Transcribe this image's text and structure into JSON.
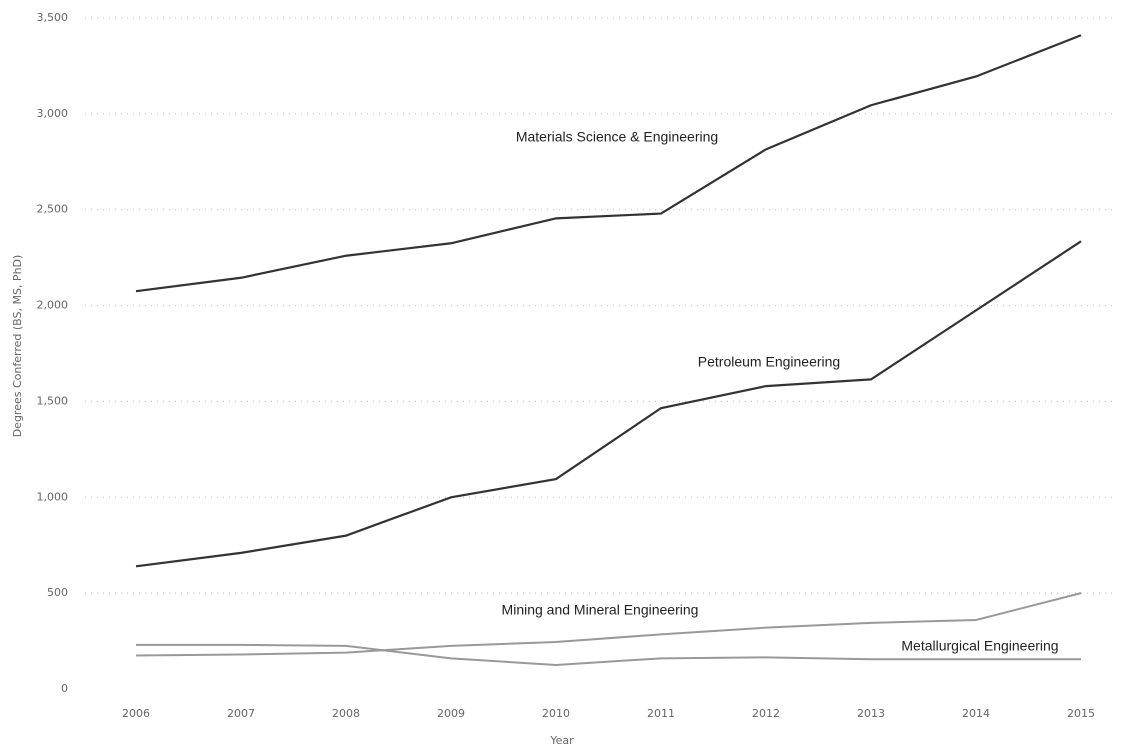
{
  "chart_data": {
    "type": "line",
    "x_label": "Year",
    "y_label": "Degrees Conferred (BS, MS, PhD)",
    "categories": [
      "2006",
      "2007",
      "2008",
      "2009",
      "2010",
      "2011",
      "2012",
      "2013",
      "2014",
      "2015"
    ],
    "series": [
      {
        "name": "Materials Science & Engineering",
        "color": "#333333",
        "values": [
          2075,
          2145,
          2260,
          2325,
          2455,
          2480,
          2815,
          3045,
          3195,
          3410
        ]
      },
      {
        "name": "Petroleum Engineering",
        "color": "#333333",
        "values": [
          640,
          710,
          800,
          1000,
          1095,
          1465,
          1580,
          1615,
          1975,
          2335
        ]
      },
      {
        "name": "Mining and Mineral Engineering",
        "color": "#999999",
        "values": [
          175,
          180,
          190,
          225,
          245,
          285,
          320,
          345,
          360,
          500
        ]
      },
      {
        "name": "Metallurgical Engineering",
        "color": "#999999",
        "values": [
          230,
          230,
          225,
          160,
          125,
          160,
          165,
          155,
          155,
          155
        ]
      }
    ],
    "ylim": [
      0,
      3500
    ],
    "yticks": [
      0,
      500,
      {
        "value": 1000,
        "label": "1,000"
      },
      {
        "value": 1500,
        "label": "1,500"
      },
      {
        "value": 2000,
        "label": "2,000"
      },
      {
        "value": 2500,
        "label": "2,500"
      },
      {
        "value": 3000,
        "label": "3,000"
      },
      {
        "value": 3500,
        "label": "3,500"
      }
    ],
    "grid": true
  }
}
